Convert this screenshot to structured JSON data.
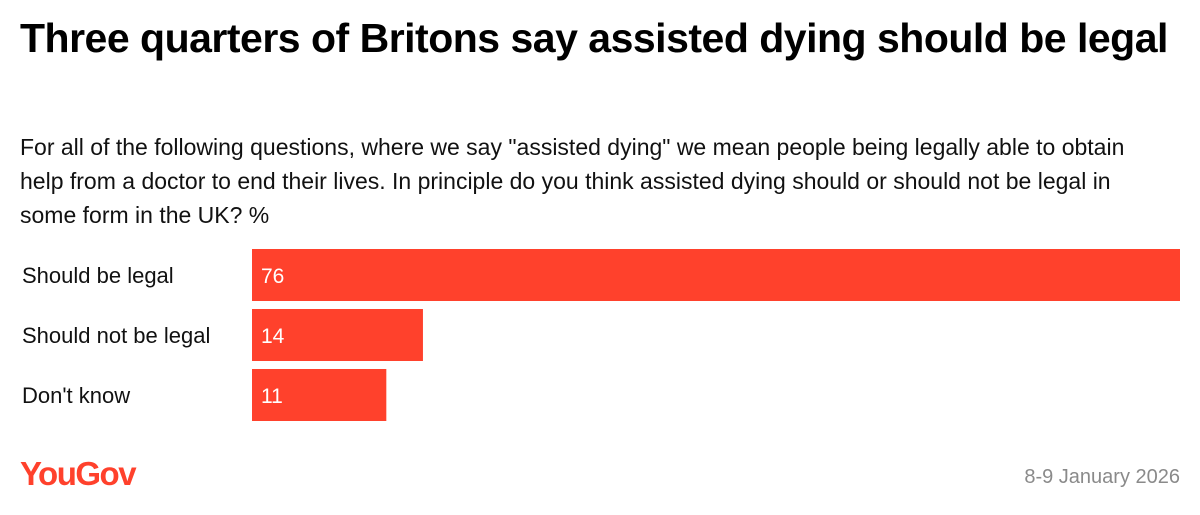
{
  "header": {
    "title": "Three quarters of Britons say assisted dying should be legal",
    "subtitle": "For all of the following questions, where we say \"assisted dying\" we mean people being legally able to obtain help from a doctor to end their lives. In principle do you think assisted dying should or should not be legal in some form in the UK? %"
  },
  "footer": {
    "logo_text": "YouGov",
    "date": "8-9 January 2026"
  },
  "colors": {
    "bar": "#ff412c",
    "bar_label": "#ffffff",
    "logo": "#ff412c",
    "date": "#8a8a8a"
  },
  "chart_data": {
    "type": "bar",
    "orientation": "horizontal",
    "categories": [
      "Should be legal",
      "Should not be legal",
      "Don't know"
    ],
    "values": [
      76,
      14,
      11
    ],
    "xlim": [
      0,
      76
    ],
    "grid": false,
    "legend": "none"
  }
}
